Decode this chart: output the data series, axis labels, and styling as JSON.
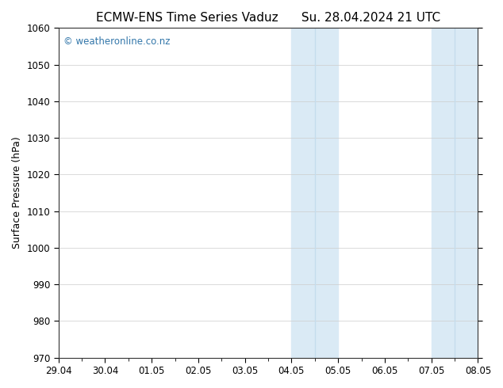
{
  "title_left": "ECMW-ENS Time Series Vaduz",
  "title_right": "Su. 28.04.2024 21 UTC",
  "ylabel": "Surface Pressure (hPa)",
  "ylim": [
    970,
    1060
  ],
  "yticks": [
    970,
    980,
    990,
    1000,
    1010,
    1020,
    1030,
    1040,
    1050,
    1060
  ],
  "x_tick_labels": [
    "29.04",
    "30.04",
    "01.05",
    "02.05",
    "03.05",
    "04.05",
    "05.05",
    "06.05",
    "07.05",
    "08.05"
  ],
  "x_tick_positions": [
    0,
    1,
    2,
    3,
    4,
    5,
    6,
    7,
    8,
    9
  ],
  "shaded_regions": [
    {
      "xmin": 5.0,
      "xmax": 6.0
    },
    {
      "xmin": 8.0,
      "xmax": 9.0
    }
  ],
  "shade_dividers": [
    5.5,
    8.5
  ],
  "watermark": "© weatheronline.co.nz",
  "watermark_color": "#3377aa",
  "background_color": "#ffffff",
  "plot_bg_color": "#ffffff",
  "shade_color": "#daeaf5",
  "shade_divider_color": "#c5dded",
  "title_fontsize": 11,
  "tick_fontsize": 8.5,
  "ylabel_fontsize": 9,
  "xlim": [
    0,
    9
  ],
  "grid_color": "#cccccc",
  "grid_linewidth": 0.5,
  "spine_color": "#333333",
  "spine_linewidth": 0.8
}
